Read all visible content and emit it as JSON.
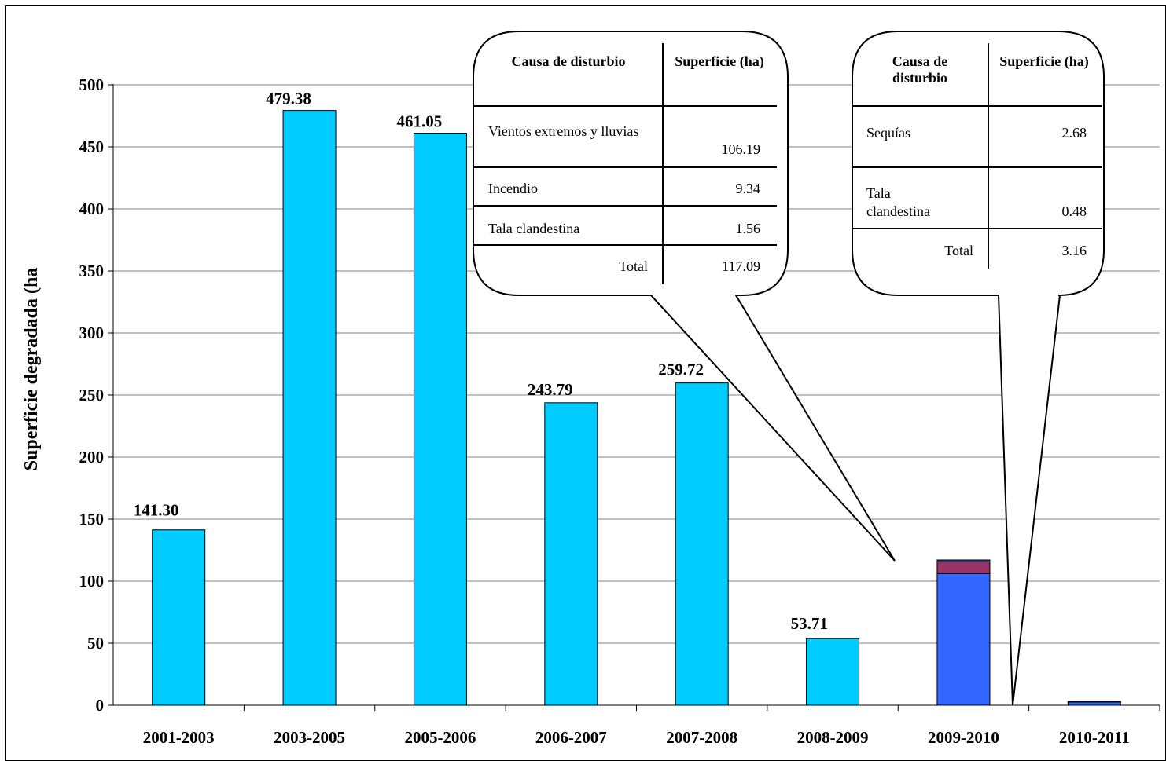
{
  "chart_data": {
    "type": "bar",
    "ylabel": "Superficie degradada (ha",
    "ylim": [
      0,
      500
    ],
    "yticks": [
      0,
      50,
      100,
      150,
      200,
      250,
      300,
      350,
      400,
      450,
      500
    ],
    "categories": [
      "2001-2003",
      "2003-2005",
      "2005-2006",
      "2006-2007",
      "2007-2008",
      "2008-2009",
      "2009-2010",
      "2010-2011"
    ],
    "values": [
      141.3,
      479.38,
      461.05,
      243.79,
      259.72,
      53.71,
      117.09,
      3.16
    ],
    "data_labels": [
      "141.30",
      "479.38",
      "461.05",
      "243.79",
      "259.72",
      "53.71",
      "",
      ""
    ],
    "stacked_segments": {
      "2009-2010": [
        {
          "name": "Vientos extremos y lluvias",
          "value": 106.19,
          "color": "#3366FF"
        },
        {
          "name": "Incendio",
          "value": 9.34,
          "color": "#993366"
        },
        {
          "name": "Tala clandestina",
          "value": 1.56,
          "color": "#333399"
        }
      ],
      "2010-2011": [
        {
          "name": "Sequías",
          "value": 2.68,
          "color": "#3366FF"
        },
        {
          "name": "Tala clandestina",
          "value": 0.48,
          "color": "#333399"
        }
      ]
    },
    "colors": {
      "bar": "#00CCFF",
      "grid": "#808080",
      "axis": "#000000"
    },
    "grid": true
  },
  "callout_1": {
    "header_cause": "Causa de disturbio",
    "header_area": "Superficie (ha)",
    "rows": [
      {
        "cause": "Vientos extremos y lluvias",
        "area": "106.19"
      },
      {
        "cause": "Incendio",
        "area": "9.34"
      },
      {
        "cause": "Tala clandestina",
        "area": "1.56"
      }
    ],
    "total_label": "Total",
    "total_value": "117.09"
  },
  "callout_2": {
    "header_cause": "Causa de disturbio",
    "header_area": "Superficie (ha)",
    "rows": [
      {
        "cause": "Sequías",
        "area": "2.68"
      },
      {
        "cause": "Tala clandestina",
        "area": "0.48"
      }
    ],
    "total_label": "Total",
    "total_value": "3.16"
  }
}
